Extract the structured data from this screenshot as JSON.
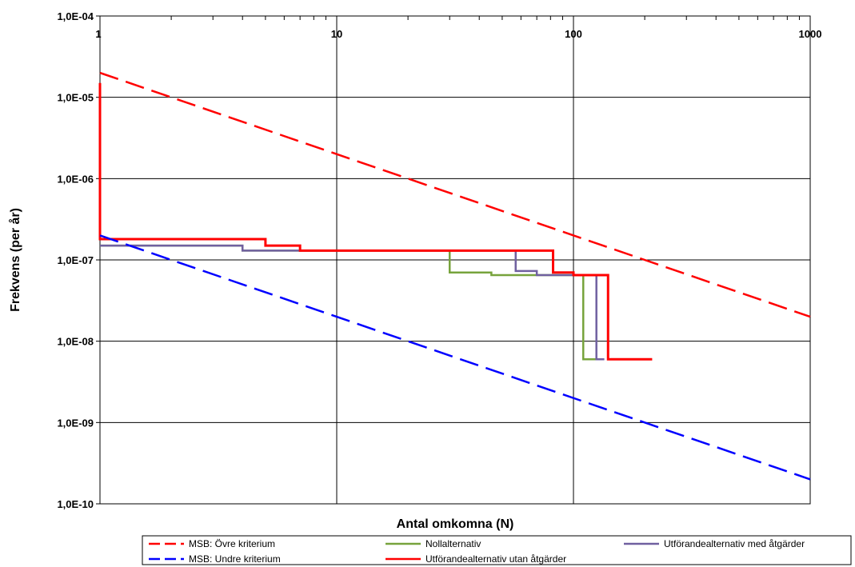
{
  "chart_data": {
    "type": "line",
    "title": "",
    "xlabel": "Antal omkomna  (N)",
    "ylabel": "Frekvens (per år)",
    "x_scale": "log",
    "y_scale": "log",
    "xlim": [
      1,
      1000
    ],
    "ylim": [
      1e-10,
      0.0001
    ],
    "x_ticks": [
      1,
      10,
      100,
      1000
    ],
    "x_tick_labels": [
      "1",
      "10",
      "100",
      "1000"
    ],
    "y_ticks": [
      0.0001,
      1e-05,
      1e-06,
      1e-07,
      1e-08,
      1e-09,
      1e-10
    ],
    "y_tick_labels": [
      "1,0E-04",
      "1,0E-05",
      "1,0E-06",
      "1,0E-07",
      "1,0E-08",
      "1,0E-09",
      "1,0E-10"
    ],
    "grid": true,
    "legend_position": "bottom",
    "series": [
      {
        "name": "MSB: Övre kriterium",
        "color": "#ff0000",
        "style": "dashed",
        "points": [
          [
            1,
            2e-05
          ],
          [
            1000,
            2e-08
          ]
        ]
      },
      {
        "name": "MSB: Undre kriterium",
        "color": "#0000ff",
        "style": "dashed",
        "points": [
          [
            1,
            2e-07
          ],
          [
            1000,
            2e-10
          ]
        ]
      },
      {
        "name": "Nollalternativ",
        "color": "#77a33c",
        "style": "solid",
        "points": [
          [
            1,
            1.5e-07
          ],
          [
            4,
            1.5e-07
          ],
          [
            4,
            1.3e-07
          ],
          [
            30,
            1.3e-07
          ],
          [
            30,
            7e-08
          ],
          [
            45,
            7e-08
          ],
          [
            45,
            6.5e-08
          ],
          [
            110,
            6.5e-08
          ],
          [
            110,
            6e-09
          ],
          [
            125,
            6e-09
          ]
        ]
      },
      {
        "name": "Utförandealternativ med åtgärder",
        "color": "#7060a0",
        "style": "solid",
        "points": [
          [
            1,
            1.5e-07
          ],
          [
            4,
            1.5e-07
          ],
          [
            4,
            1.3e-07
          ],
          [
            57,
            1.3e-07
          ],
          [
            57,
            7.3e-08
          ],
          [
            70,
            7.3e-08
          ],
          [
            70,
            6.5e-08
          ],
          [
            125,
            6.5e-08
          ],
          [
            125,
            6e-09
          ],
          [
            135,
            6e-09
          ]
        ]
      },
      {
        "name": "Utförandealternativ utan åtgärder",
        "color": "#ff0000",
        "style": "solid",
        "points": [
          [
            1,
            1.5e-05
          ],
          [
            1,
            1.8e-07
          ],
          [
            5,
            1.8e-07
          ],
          [
            5,
            1.5e-07
          ],
          [
            7,
            1.5e-07
          ],
          [
            7,
            1.3e-07
          ],
          [
            82,
            1.3e-07
          ],
          [
            82,
            7e-08
          ],
          [
            100,
            7e-08
          ],
          [
            100,
            6.5e-08
          ],
          [
            140,
            6.5e-08
          ],
          [
            140,
            6e-09
          ],
          [
            215,
            6e-09
          ]
        ]
      }
    ]
  }
}
